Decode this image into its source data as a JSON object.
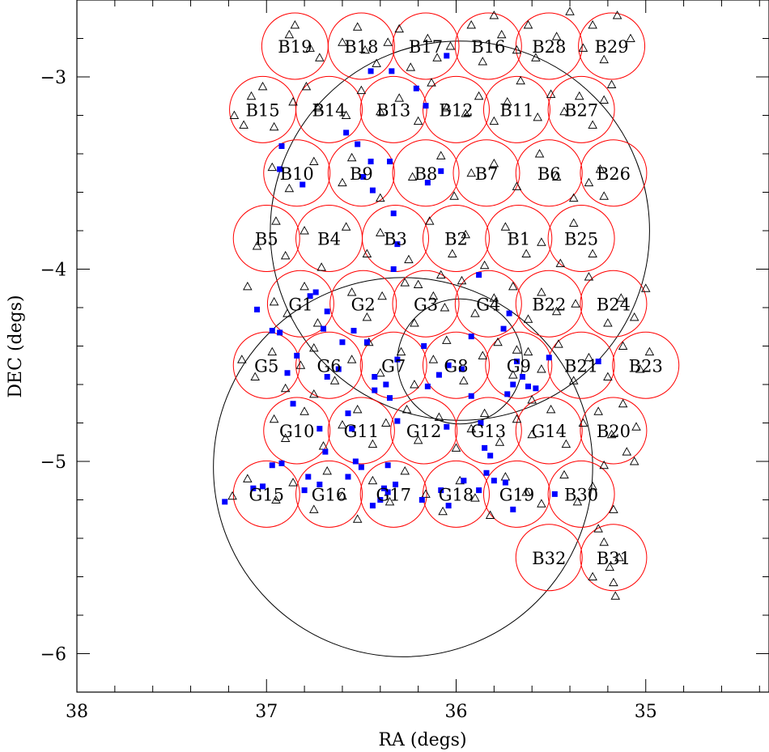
{
  "chart_data": {
    "type": "scatter",
    "title": "",
    "xlabel": "RA (degs)",
    "ylabel": "DEC (degs)",
    "xlim": [
      38.0,
      34.35
    ],
    "ylim": [
      -6.2,
      -2.6
    ],
    "x_reversed": true,
    "x_ticks": [
      "38",
      "37",
      "36",
      "35"
    ],
    "x_tick_values": [
      38,
      37,
      36,
      35
    ],
    "y_ticks": [
      "−3",
      "−4",
      "−5",
      "−6"
    ],
    "y_tick_values": [
      -3,
      -4,
      -5,
      -6
    ],
    "grid": false,
    "colors": {
      "field_circles": "#ff0000",
      "large_circles": "#000000",
      "squares": "#0000ff",
      "triangles": "#000000",
      "axes": "#000000"
    },
    "fields": [
      {
        "label": "B19",
        "ra": 36.85,
        "dec": -2.84
      },
      {
        "label": "B18",
        "ra": 36.5,
        "dec": -2.84
      },
      {
        "label": "B17",
        "ra": 36.16,
        "dec": -2.84
      },
      {
        "label": "B16",
        "ra": 35.83,
        "dec": -2.84
      },
      {
        "label": "B28",
        "ra": 35.51,
        "dec": -2.84
      },
      {
        "label": "B29",
        "ra": 35.18,
        "dec": -2.84
      },
      {
        "label": "B15",
        "ra": 37.02,
        "dec": -3.17
      },
      {
        "label": "B14",
        "ra": 36.67,
        "dec": -3.17
      },
      {
        "label": "B13",
        "ra": 36.33,
        "dec": -3.17
      },
      {
        "label": "B12",
        "ra": 36.0,
        "dec": -3.17
      },
      {
        "label": "B11",
        "ra": 35.68,
        "dec": -3.17
      },
      {
        "label": "B27",
        "ra": 35.34,
        "dec": -3.17
      },
      {
        "label": "B10",
        "ra": 36.84,
        "dec": -3.5
      },
      {
        "label": "B9",
        "ra": 36.5,
        "dec": -3.5
      },
      {
        "label": "B8",
        "ra": 36.16,
        "dec": -3.5
      },
      {
        "label": "B7",
        "ra": 35.84,
        "dec": -3.5
      },
      {
        "label": "B6",
        "ra": 35.51,
        "dec": -3.5
      },
      {
        "label": "B26",
        "ra": 35.17,
        "dec": -3.5
      },
      {
        "label": "B5",
        "ra": 37.0,
        "dec": -3.84
      },
      {
        "label": "B4",
        "ra": 36.67,
        "dec": -3.84
      },
      {
        "label": "B3",
        "ra": 36.32,
        "dec": -3.84
      },
      {
        "label": "B2",
        "ra": 36.0,
        "dec": -3.84
      },
      {
        "label": "B1",
        "ra": 35.67,
        "dec": -3.84
      },
      {
        "label": "B25",
        "ra": 35.34,
        "dec": -3.84
      },
      {
        "label": "G1",
        "ra": 36.82,
        "dec": -4.18
      },
      {
        "label": "G2",
        "ra": 36.49,
        "dec": -4.18
      },
      {
        "label": "G3",
        "ra": 36.16,
        "dec": -4.18
      },
      {
        "label": "G4",
        "ra": 35.83,
        "dec": -4.18
      },
      {
        "label": "B22",
        "ra": 35.51,
        "dec": -4.18
      },
      {
        "label": "B24",
        "ra": 35.17,
        "dec": -4.18
      },
      {
        "label": "G5",
        "ra": 37.0,
        "dec": -4.5
      },
      {
        "label": "G6",
        "ra": 36.67,
        "dec": -4.5
      },
      {
        "label": "G7",
        "ra": 36.33,
        "dec": -4.5
      },
      {
        "label": "G8",
        "ra": 36.0,
        "dec": -4.5
      },
      {
        "label": "G9",
        "ra": 35.67,
        "dec": -4.5
      },
      {
        "label": "B21",
        "ra": 35.34,
        "dec": -4.5
      },
      {
        "label": "B23",
        "ra": 35.0,
        "dec": -4.5
      },
      {
        "label": "G10",
        "ra": 36.84,
        "dec": -4.84
      },
      {
        "label": "G11",
        "ra": 36.5,
        "dec": -4.84
      },
      {
        "label": "G12",
        "ra": 36.17,
        "dec": -4.84
      },
      {
        "label": "G13",
        "ra": 35.83,
        "dec": -4.84
      },
      {
        "label": "G14",
        "ra": 35.51,
        "dec": -4.84
      },
      {
        "label": "B20",
        "ra": 35.17,
        "dec": -4.84
      },
      {
        "label": "G15",
        "ra": 37.0,
        "dec": -5.17
      },
      {
        "label": "G16",
        "ra": 36.67,
        "dec": -5.17
      },
      {
        "label": "G17",
        "ra": 36.33,
        "dec": -5.17
      },
      {
        "label": "G18",
        "ra": 36.0,
        "dec": -5.17
      },
      {
        "label": "G19",
        "ra": 35.68,
        "dec": -5.17
      },
      {
        "label": "B30",
        "ra": 35.34,
        "dec": -5.17
      },
      {
        "label": "B32",
        "ra": 35.51,
        "dec": -5.5
      },
      {
        "label": "B31",
        "ra": 35.17,
        "dec": -5.5
      }
    ],
    "field_radius_deg": 0.175,
    "large_circles": [
      {
        "ra": 35.98,
        "dec": -3.8,
        "r": 1.0
      },
      {
        "ra": 35.98,
        "dec": -4.48,
        "r": 0.33
      },
      {
        "ra": 36.28,
        "dec": -5.03,
        "r": 1.0
      }
    ],
    "squares": [
      [
        37.22,
        -5.21
      ],
      [
        37.07,
        -5.14
      ],
      [
        37.02,
        -5.13
      ],
      [
        36.97,
        -5.02
      ],
      [
        36.92,
        -5.01
      ],
      [
        36.8,
        -5.15
      ],
      [
        36.78,
        -5.08
      ],
      [
        36.72,
        -5.12
      ],
      [
        36.69,
        -4.95
      ],
      [
        36.57,
        -5.08
      ],
      [
        36.53,
        -5.0
      ],
      [
        36.5,
        -5.03
      ],
      [
        36.44,
        -5.23
      ],
      [
        36.4,
        -5.2
      ],
      [
        36.38,
        -5.14
      ],
      [
        36.36,
        -5.16
      ],
      [
        36.36,
        -5.02
      ],
      [
        36.32,
        -5.12
      ],
      [
        36.18,
        -5.2
      ],
      [
        36.08,
        -5.15
      ],
      [
        36.04,
        -5.23
      ],
      [
        35.96,
        -5.1
      ],
      [
        35.88,
        -5.15
      ],
      [
        35.84,
        -5.06
      ],
      [
        35.8,
        -5.1
      ],
      [
        35.7,
        -5.25
      ],
      [
        35.74,
        -5.11
      ],
      [
        35.48,
        -5.17
      ],
      [
        36.86,
        -4.7
      ],
      [
        36.72,
        -4.83
      ],
      [
        36.55,
        -4.83
      ],
      [
        36.57,
        -4.75
      ],
      [
        36.43,
        -4.63
      ],
      [
        36.35,
        -4.67
      ],
      [
        36.31,
        -4.79
      ],
      [
        36.15,
        -4.61
      ],
      [
        36.05,
        -4.82
      ],
      [
        35.87,
        -4.8
      ],
      [
        35.92,
        -4.66
      ],
      [
        35.85,
        -4.93
      ],
      [
        35.82,
        -4.97
      ],
      [
        35.73,
        -4.65
      ],
      [
        35.7,
        -4.6
      ],
      [
        35.65,
        -4.56
      ],
      [
        35.62,
        -4.61
      ],
      [
        35.51,
        -4.46
      ],
      [
        35.68,
        -4.48
      ],
      [
        35.75,
        -4.31
      ],
      [
        35.97,
        -4.52
      ],
      [
        35.92,
        -4.35
      ],
      [
        36.04,
        -4.5
      ],
      [
        36.09,
        -4.55
      ],
      [
        36.17,
        -4.4
      ],
      [
        36.31,
        -4.47
      ],
      [
        36.37,
        -4.6
      ],
      [
        36.43,
        -4.56
      ],
      [
        36.47,
        -4.38
      ],
      [
        36.54,
        -4.32
      ],
      [
        36.6,
        -4.38
      ],
      [
        36.62,
        -4.52
      ],
      [
        36.68,
        -4.56
      ],
      [
        36.7,
        -4.31
      ],
      [
        36.84,
        -4.45
      ],
      [
        36.93,
        -4.33
      ],
      [
        36.89,
        -4.54
      ],
      [
        36.97,
        -4.32
      ],
      [
        37.05,
        -4.21
      ],
      [
        36.74,
        -4.12
      ],
      [
        36.77,
        -4.14
      ],
      [
        36.68,
        -4.22
      ],
      [
        36.33,
        -4.0
      ],
      [
        36.31,
        -3.87
      ],
      [
        36.33,
        -3.71
      ],
      [
        36.44,
        -3.59
      ],
      [
        36.45,
        -3.44
      ],
      [
        36.35,
        -3.44
      ],
      [
        36.15,
        -3.55
      ],
      [
        36.08,
        -3.49
      ],
      [
        36.49,
        -3.52
      ],
      [
        36.81,
        -3.56
      ],
      [
        36.93,
        -3.48
      ],
      [
        36.92,
        -3.36
      ],
      [
        36.58,
        -3.29
      ],
      [
        36.52,
        -3.35
      ],
      [
        36.45,
        -2.97
      ],
      [
        36.34,
        -2.97
      ],
      [
        36.21,
        -3.06
      ],
      [
        36.16,
        -3.15
      ],
      [
        36.05,
        -2.89
      ],
      [
        35.88,
        -4.03
      ],
      [
        35.72,
        -4.23
      ],
      [
        35.58,
        -4.62
      ],
      [
        35.25,
        -4.48
      ]
    ],
    "triangles": [
      [
        36.88,
        -2.78
      ],
      [
        36.85,
        -2.73
      ],
      [
        36.77,
        -2.85
      ],
      [
        36.72,
        -2.9
      ],
      [
        36.6,
        -2.82
      ],
      [
        36.52,
        -2.74
      ],
      [
        36.48,
        -2.86
      ],
      [
        36.42,
        -2.93
      ],
      [
        36.36,
        -2.82
      ],
      [
        36.3,
        -2.75
      ],
      [
        36.24,
        -2.95
      ],
      [
        36.15,
        -2.8
      ],
      [
        36.1,
        -2.9
      ],
      [
        36.03,
        -2.84
      ],
      [
        35.92,
        -2.73
      ],
      [
        35.86,
        -2.92
      ],
      [
        35.8,
        -2.68
      ],
      [
        35.76,
        -2.78
      ],
      [
        35.68,
        -2.86
      ],
      [
        35.62,
        -2.73
      ],
      [
        35.58,
        -2.9
      ],
      [
        35.47,
        -2.79
      ],
      [
        35.4,
        -2.66
      ],
      [
        35.33,
        -2.85
      ],
      [
        35.28,
        -2.73
      ],
      [
        35.22,
        -2.91
      ],
      [
        35.15,
        -2.68
      ],
      [
        35.08,
        -2.8
      ],
      [
        37.17,
        -3.2
      ],
      [
        37.12,
        -3.25
      ],
      [
        37.08,
        -3.1
      ],
      [
        37.02,
        -3.05
      ],
      [
        36.96,
        -3.26
      ],
      [
        36.86,
        -3.13
      ],
      [
        36.79,
        -3.05
      ],
      [
        36.73,
        -3.16
      ],
      [
        36.58,
        -3.2
      ],
      [
        36.5,
        -3.07
      ],
      [
        36.4,
        -3.18
      ],
      [
        36.3,
        -3.11
      ],
      [
        36.2,
        -3.23
      ],
      [
        36.13,
        -3.03
      ],
      [
        36.05,
        -3.16
      ],
      [
        35.95,
        -3.19
      ],
      [
        35.88,
        -3.1
      ],
      [
        35.8,
        -3.23
      ],
      [
        35.73,
        -3.13
      ],
      [
        35.66,
        -3.02
      ],
      [
        35.57,
        -3.21
      ],
      [
        35.5,
        -3.09
      ],
      [
        35.43,
        -3.18
      ],
      [
        35.35,
        -3.1
      ],
      [
        35.28,
        -3.25
      ],
      [
        35.22,
        -3.12
      ],
      [
        35.18,
        -3.04
      ],
      [
        36.97,
        -3.47
      ],
      [
        36.88,
        -3.58
      ],
      [
        36.75,
        -3.44
      ],
      [
        36.6,
        -3.55
      ],
      [
        36.55,
        -3.42
      ],
      [
        36.4,
        -3.63
      ],
      [
        36.23,
        -3.52
      ],
      [
        36.08,
        -3.41
      ],
      [
        36.01,
        -3.62
      ],
      [
        35.92,
        -3.5
      ],
      [
        35.8,
        -3.45
      ],
      [
        35.68,
        -3.57
      ],
      [
        35.56,
        -3.4
      ],
      [
        35.47,
        -3.52
      ],
      [
        35.38,
        -3.63
      ],
      [
        35.3,
        -3.55
      ],
      [
        35.24,
        -3.48
      ],
      [
        35.22,
        -3.62
      ],
      [
        37.05,
        -3.88
      ],
      [
        36.95,
        -3.75
      ],
      [
        36.9,
        -3.93
      ],
      [
        36.8,
        -3.8
      ],
      [
        36.71,
        -3.99
      ],
      [
        36.58,
        -3.78
      ],
      [
        36.47,
        -3.92
      ],
      [
        36.4,
        -3.81
      ],
      [
        36.25,
        -3.95
      ],
      [
        36.14,
        -3.75
      ],
      [
        36.02,
        -3.92
      ],
      [
        35.95,
        -3.82
      ],
      [
        35.85,
        -3.98
      ],
      [
        35.74,
        -3.78
      ],
      [
        35.63,
        -3.92
      ],
      [
        35.55,
        -3.86
      ],
      [
        35.45,
        -3.97
      ],
      [
        35.38,
        -3.76
      ],
      [
        35.28,
        -3.92
      ],
      [
        37.1,
        -4.09
      ],
      [
        36.96,
        -4.17
      ],
      [
        36.89,
        -4.23
      ],
      [
        36.8,
        -4.09
      ],
      [
        36.73,
        -4.28
      ],
      [
        36.55,
        -4.12
      ],
      [
        36.47,
        -4.25
      ],
      [
        36.39,
        -4.14
      ],
      [
        36.27,
        -4.07
      ],
      [
        36.22,
        -4.28
      ],
      [
        36.12,
        -4.14
      ],
      [
        36.06,
        -4.2
      ],
      [
        35.97,
        -4.06
      ],
      [
        35.9,
        -4.23
      ],
      [
        35.8,
        -4.15
      ],
      [
        35.7,
        -4.09
      ],
      [
        35.62,
        -4.26
      ],
      [
        35.55,
        -4.12
      ],
      [
        35.47,
        -4.22
      ],
      [
        35.37,
        -4.18
      ],
      [
        35.3,
        -4.04
      ],
      [
        35.2,
        -4.28
      ],
      [
        35.13,
        -4.15
      ],
      [
        35.06,
        -4.25
      ],
      [
        35.0,
        -4.1
      ],
      [
        37.13,
        -4.47
      ],
      [
        37.06,
        -4.56
      ],
      [
        36.97,
        -4.43
      ],
      [
        36.9,
        -4.62
      ],
      [
        36.82,
        -4.5
      ],
      [
        36.75,
        -4.41
      ],
      [
        36.64,
        -4.58
      ],
      [
        36.55,
        -4.47
      ],
      [
        36.46,
        -4.38
      ],
      [
        36.4,
        -4.54
      ],
      [
        36.29,
        -4.43
      ],
      [
        36.22,
        -4.6
      ],
      [
        36.12,
        -4.47
      ],
      [
        36.05,
        -4.37
      ],
      [
        35.96,
        -4.58
      ],
      [
        35.86,
        -4.45
      ],
      [
        35.78,
        -4.38
      ],
      [
        35.7,
        -4.55
      ],
      [
        35.62,
        -4.43
      ],
      [
        35.55,
        -4.52
      ],
      [
        35.46,
        -4.39
      ],
      [
        35.38,
        -4.58
      ],
      [
        35.3,
        -4.46
      ],
      [
        35.2,
        -4.56
      ],
      [
        35.12,
        -4.4
      ],
      [
        35.03,
        -4.52
      ],
      [
        34.98,
        -4.43
      ],
      [
        36.96,
        -4.78
      ],
      [
        36.9,
        -4.88
      ],
      [
        36.8,
        -4.74
      ],
      [
        36.7,
        -4.92
      ],
      [
        36.6,
        -4.81
      ],
      [
        36.52,
        -4.73
      ],
      [
        36.44,
        -4.91
      ],
      [
        36.37,
        -4.8
      ],
      [
        36.26,
        -4.73
      ],
      [
        36.2,
        -4.89
      ],
      [
        36.09,
        -4.77
      ],
      [
        36.0,
        -4.93
      ],
      [
        35.92,
        -4.83
      ],
      [
        35.85,
        -4.75
      ],
      [
        35.77,
        -4.9
      ],
      [
        35.68,
        -4.78
      ],
      [
        35.6,
        -4.86
      ],
      [
        35.5,
        -4.73
      ],
      [
        35.42,
        -4.91
      ],
      [
        35.33,
        -4.8
      ],
      [
        35.25,
        -4.74
      ],
      [
        35.18,
        -4.86
      ],
      [
        35.12,
        -4.7
      ],
      [
        35.05,
        -4.82
      ],
      [
        37.18,
        -5.18
      ],
      [
        37.1,
        -5.09
      ],
      [
        36.95,
        -5.2
      ],
      [
        36.86,
        -5.11
      ],
      [
        36.75,
        -5.25
      ],
      [
        36.68,
        -5.05
      ],
      [
        36.6,
        -5.18
      ],
      [
        36.52,
        -5.3
      ],
      [
        36.44,
        -5.1
      ],
      [
        36.35,
        -5.21
      ],
      [
        36.27,
        -5.05
      ],
      [
        36.16,
        -5.17
      ],
      [
        36.07,
        -5.26
      ],
      [
        35.98,
        -5.1
      ],
      [
        35.9,
        -5.19
      ],
      [
        35.82,
        -5.28
      ],
      [
        35.74,
        -5.08
      ],
      [
        35.63,
        -5.16
      ],
      [
        35.55,
        -5.22
      ],
      [
        35.43,
        -5.07
      ],
      [
        35.36,
        -5.21
      ],
      [
        35.28,
        -5.13
      ],
      [
        35.22,
        -5.02
      ],
      [
        35.17,
        -5.25
      ],
      [
        35.25,
        -5.35
      ],
      [
        35.22,
        -5.42
      ],
      [
        35.19,
        -5.55
      ],
      [
        35.17,
        -5.63
      ],
      [
        35.16,
        -5.7
      ],
      [
        35.14,
        -5.5
      ],
      [
        35.28,
        -5.6
      ],
      [
        35.1,
        -4.95
      ],
      [
        35.06,
        -5.0
      ],
      [
        36.08,
        -4.03
      ],
      [
        36.2,
        -4.08
      ],
      [
        35.68,
        -4.42
      ],
      [
        35.6,
        -4.68
      ],
      [
        36.75,
        -4.65
      ]
    ]
  }
}
